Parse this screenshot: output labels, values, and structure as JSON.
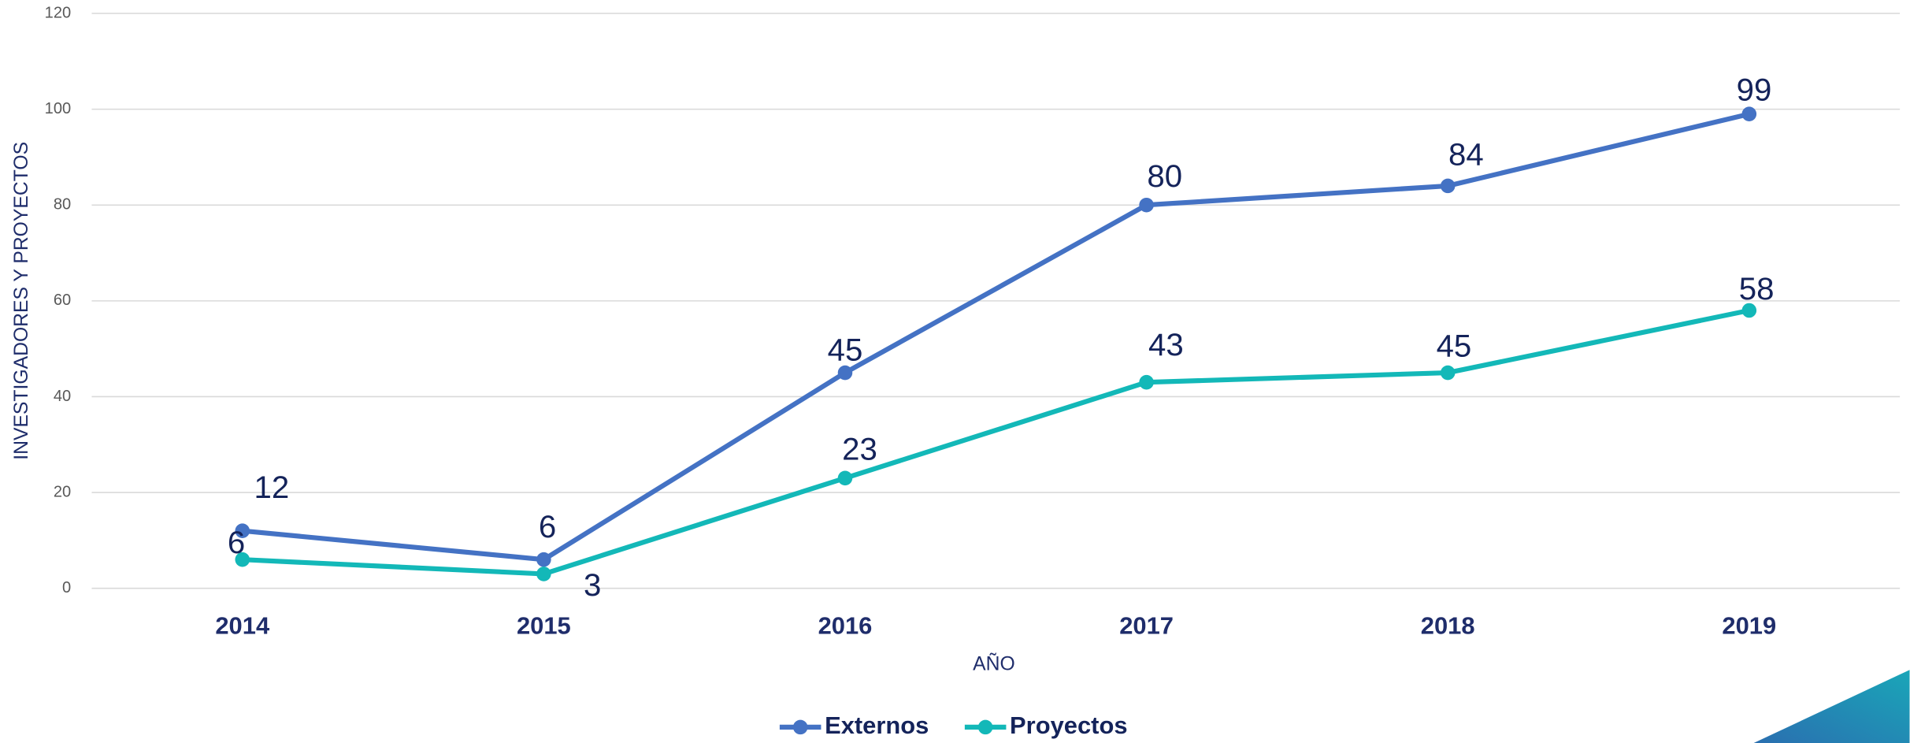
{
  "chart_data": {
    "type": "line",
    "x_label": "AÑO",
    "y_label": "INVESTIGADORES Y PROYECTOS",
    "categories": [
      "2014",
      "2015",
      "2016",
      "2017",
      "2018",
      "2019"
    ],
    "series": [
      {
        "name": "Externos",
        "color": "#4472c4",
        "values": [
          12,
          6,
          45,
          80,
          84,
          99
        ]
      },
      {
        "name": "Proyectos",
        "color": "#13b8b8",
        "values": [
          6,
          3,
          23,
          43,
          45,
          58
        ]
      }
    ],
    "ylim": [
      0,
      120
    ],
    "yticks": [
      0,
      20,
      40,
      60,
      80,
      100,
      120
    ],
    "grid": true,
    "legend": "bottom"
  }
}
